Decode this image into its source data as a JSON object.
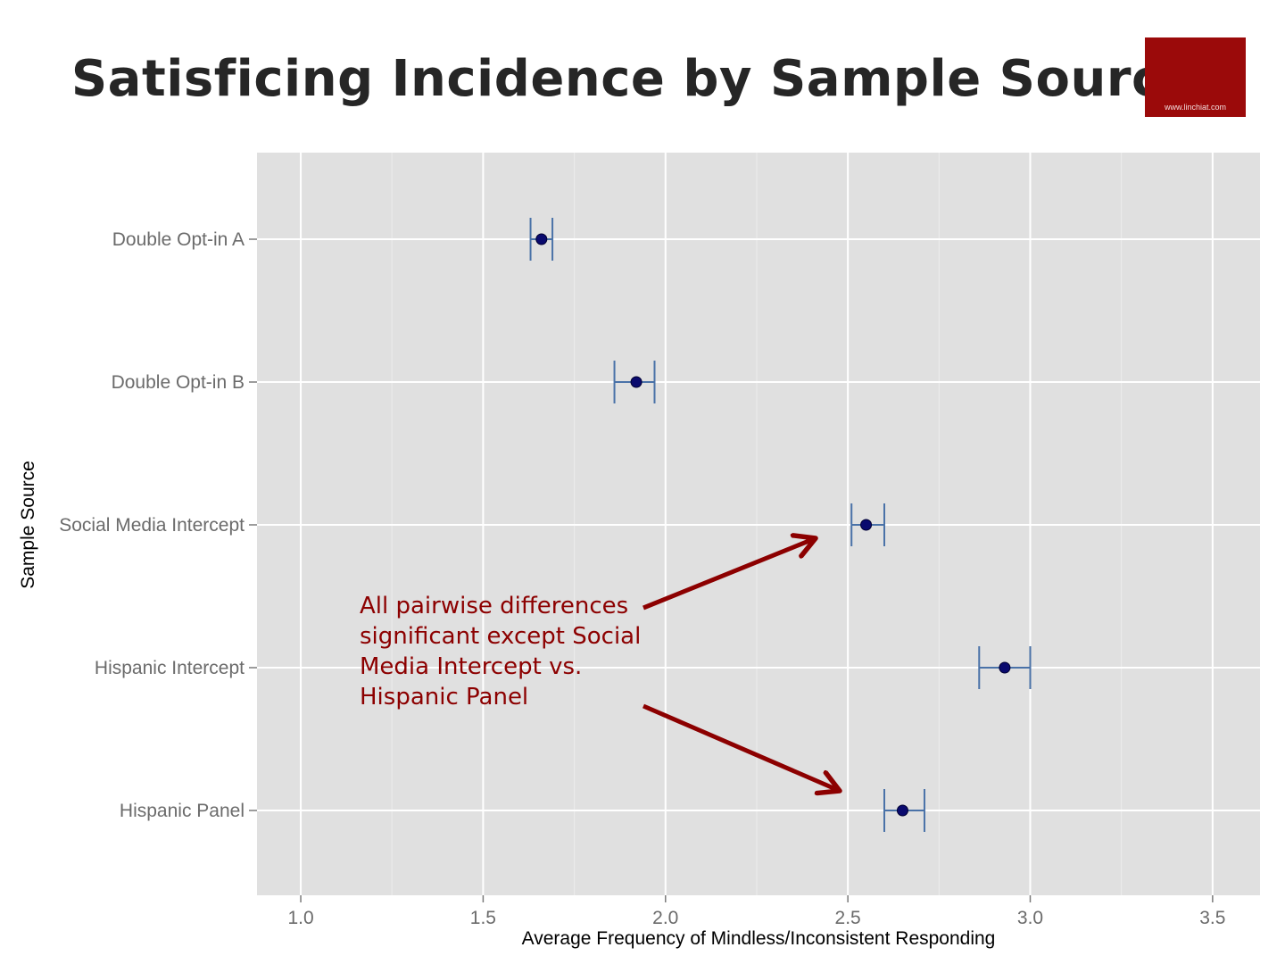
{
  "slide": {
    "title": "Satisficing Incidence by Sample Source",
    "logo_text": "www.linchiat.com",
    "annotation": "All pairwise differences significant except Social Media Intercept vs. Hispanic Panel"
  },
  "colors": {
    "panel": "#e0e0e0",
    "grid": "#ffffff",
    "errorbar": "#4a72a8",
    "point": "#0a0a6e",
    "arrow": "#8c0000",
    "logo": "#9b0a0a"
  },
  "chart_data": {
    "type": "scatter",
    "orientation": "horizontal",
    "xlabel": "Average Frequency of Mindless/Inconsistent Responding",
    "ylabel": "Sample Source",
    "xlim": [
      0.88,
      3.63
    ],
    "xticks": [
      1.0,
      1.5,
      2.0,
      2.5,
      3.0,
      3.5
    ],
    "xtick_labels": [
      "1.0",
      "1.5",
      "2.0",
      "2.5",
      "3.0",
      "3.5"
    ],
    "categories": [
      "Double Opt-in A",
      "Double Opt-in B",
      "Social Media Intercept",
      "Hispanic Intercept",
      "Hispanic Panel"
    ],
    "points": [
      {
        "category": "Double Opt-in A",
        "mean": 1.66,
        "lower": 1.63,
        "upper": 1.69
      },
      {
        "category": "Double Opt-in B",
        "mean": 1.92,
        "lower": 1.86,
        "upper": 1.97
      },
      {
        "category": "Social Media Intercept",
        "mean": 2.55,
        "lower": 2.51,
        "upper": 2.6
      },
      {
        "category": "Hispanic Intercept",
        "mean": 2.93,
        "lower": 2.86,
        "upper": 3.0
      },
      {
        "category": "Hispanic Panel",
        "mean": 2.65,
        "lower": 2.6,
        "upper": 2.71
      }
    ],
    "grid": true,
    "legend": "none"
  }
}
